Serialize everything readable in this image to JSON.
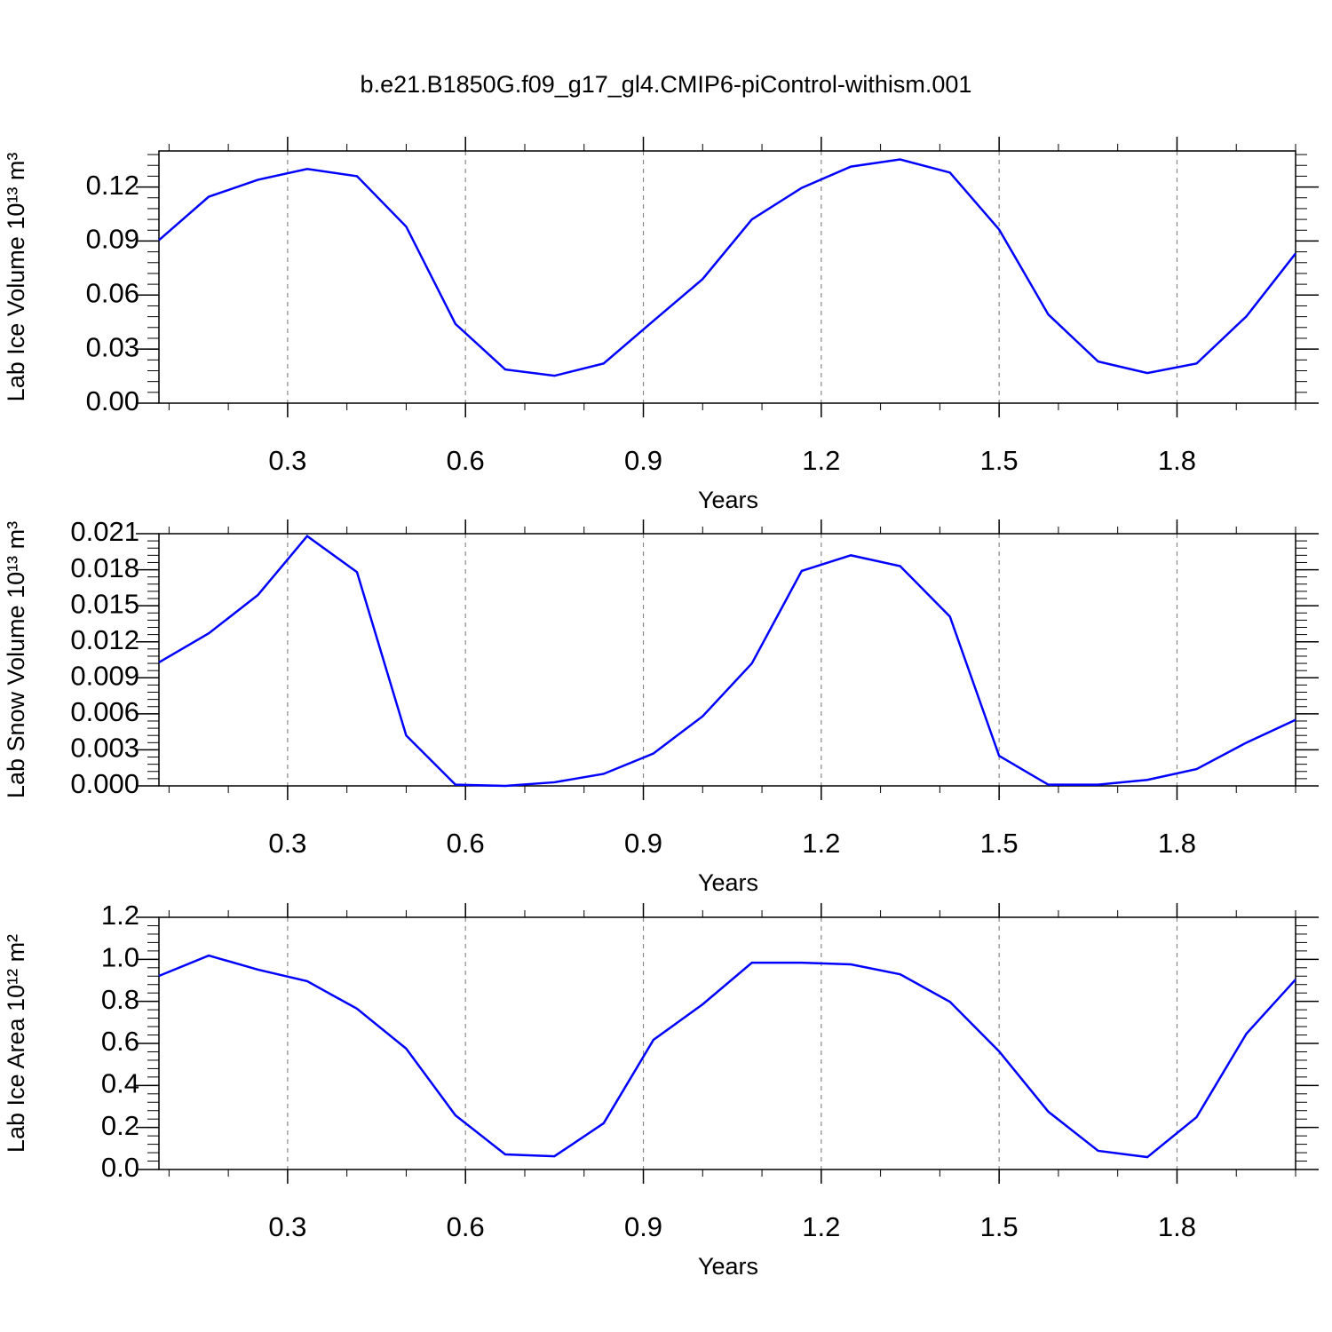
{
  "chart_data": [
    {
      "type": "line",
      "title": "b.e21.B1850G.f09_g17_gl4.CMIP6-piControl-withism.001",
      "xlabel": "Years",
      "ylabel": "Lab Ice Volume 10¹³ m³",
      "x": [
        0.083,
        0.167,
        0.25,
        0.333,
        0.417,
        0.5,
        0.583,
        0.667,
        0.75,
        0.833,
        0.917,
        1.0,
        1.083,
        1.167,
        1.25,
        1.333,
        1.417,
        1.5,
        1.583,
        1.667,
        1.75,
        1.833,
        1.917,
        2.0
      ],
      "values": [
        0.0905,
        0.1146,
        0.124,
        0.13,
        0.126,
        0.098,
        0.044,
        0.0187,
        0.0152,
        0.022,
        0.0457,
        0.0689,
        0.102,
        0.1195,
        0.1313,
        0.1353,
        0.128,
        0.0964,
        0.0492,
        0.0231,
        0.0167,
        0.022,
        0.0482,
        0.0831
      ],
      "color": "#0000ff",
      "xlim": [
        0.083,
        2.0
      ],
      "ylim": [
        0,
        0.14
      ],
      "xticks": [
        0.3,
        0.6,
        0.9,
        1.2,
        1.5,
        1.8
      ],
      "yticks": [
        {
          "value": 0,
          "label": "0.00"
        },
        0.03,
        0.06,
        0.09,
        0.12
      ],
      "grid": true
    },
    {
      "type": "line",
      "xlabel": "Years",
      "ylabel": "Lab Snow Volume 10¹³ m³",
      "x": [
        0.083,
        0.167,
        0.25,
        0.333,
        0.417,
        0.5,
        0.583,
        0.667,
        0.75,
        0.833,
        0.917,
        1.0,
        1.083,
        1.167,
        1.25,
        1.333,
        1.417,
        1.5,
        1.583,
        1.667,
        1.75,
        1.833,
        1.917,
        2.0
      ],
      "values": [
        0.01028,
        0.0127,
        0.0159,
        0.0208,
        0.0178,
        0.0042,
        0.0001,
        0.0,
        0.0003,
        0.001,
        0.0027,
        0.0058,
        0.0102,
        0.0179,
        0.0192,
        0.0183,
        0.0141,
        0.0025,
        0.0001,
        0.0001,
        0.0005,
        0.0014,
        0.0036,
        0.0055
      ],
      "color": "#0000ff",
      "xlim": [
        0.083,
        2.0
      ],
      "ylim": [
        0,
        0.021
      ],
      "xticks": [
        0.3,
        0.6,
        0.9,
        1.2,
        1.5,
        1.8
      ],
      "yticks": [
        {
          "value": 0,
          "label": "0.000"
        },
        0.003,
        0.006,
        0.009,
        0.012,
        0.015,
        0.018,
        0.021
      ],
      "grid": true
    },
    {
      "type": "line",
      "xlabel": "Years",
      "ylabel": "Lab Ice Area 10¹² m²",
      "x": [
        0.083,
        0.167,
        0.25,
        0.333,
        0.417,
        0.5,
        0.583,
        0.667,
        0.75,
        0.833,
        0.917,
        1.0,
        1.083,
        1.167,
        1.25,
        1.333,
        1.417,
        1.5,
        1.583,
        1.667,
        1.75,
        1.833,
        1.917,
        2.0
      ],
      "values": [
        0.921,
        1.018,
        0.951,
        0.896,
        0.765,
        0.575,
        0.258,
        0.072,
        0.063,
        0.22,
        0.617,
        0.786,
        0.984,
        0.984,
        0.976,
        0.929,
        0.798,
        0.562,
        0.275,
        0.089,
        0.059,
        0.249,
        0.646,
        0.904
      ],
      "color": "#0000ff",
      "xlim": [
        0.083,
        2.0
      ],
      "ylim": [
        0,
        1.2
      ],
      "xticks": [
        0.3,
        0.6,
        0.9,
        1.2,
        1.5,
        1.8
      ],
      "yticks": [
        {
          "value": 0,
          "label": "0.0"
        },
        0.2,
        0.4,
        0.6,
        0.8,
        {
          "value": 1,
          "label": "1.0"
        },
        1.2
      ],
      "grid": true
    }
  ]
}
